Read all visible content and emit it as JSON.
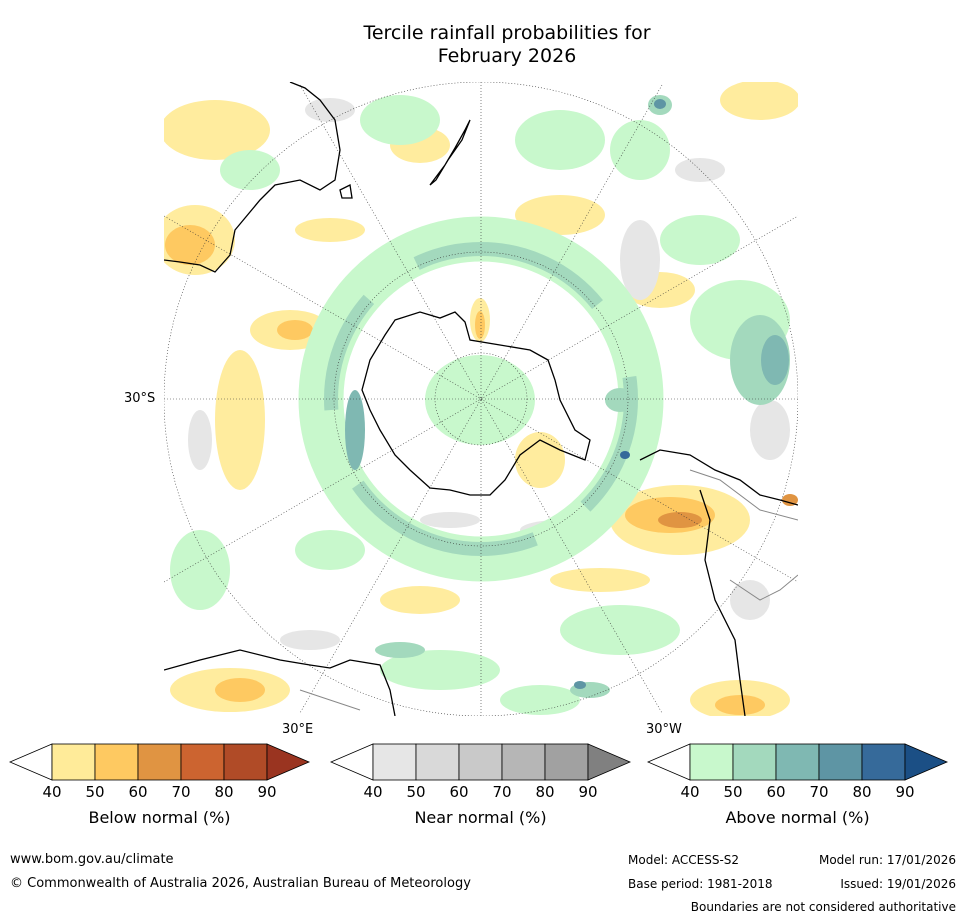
{
  "title": {
    "line1": "Tercile rainfall probabilities for",
    "line2": "February 2026"
  },
  "map": {
    "projection": "south-polar-stereographic",
    "lat_label": "30°S",
    "lon_labels": {
      "east": "30°E",
      "west": "30°W"
    },
    "colors": {
      "land_outline": "#000000",
      "boundaries": "#888888",
      "gridlines": "#333333"
    }
  },
  "colorbars": [
    {
      "id": "below",
      "title": "Below normal (%)",
      "ticks": [
        "40",
        "50",
        "60",
        "70",
        "80",
        "90"
      ],
      "colors": [
        "#ffffff",
        "#ffeb99",
        "#fec961",
        "#e09442",
        "#cc6430",
        "#b04b27",
        "#9a3420"
      ]
    },
    {
      "id": "near",
      "title": "Near normal (%)",
      "ticks": [
        "40",
        "50",
        "60",
        "70",
        "80",
        "90"
      ],
      "colors": [
        "#ffffff",
        "#e6e6e6",
        "#d9d9d9",
        "#c9c9c9",
        "#b6b6b6",
        "#a1a1a1",
        "#808080"
      ]
    },
    {
      "id": "above",
      "title": "Above normal (%)",
      "ticks": [
        "40",
        "50",
        "60",
        "70",
        "80",
        "90"
      ],
      "colors": [
        "#ffffff",
        "#c8f8cc",
        "#a3d9bd",
        "#7fb8b2",
        "#5e95a4",
        "#366a9a",
        "#1b4f85"
      ]
    }
  ],
  "footer": {
    "website": "www.bom.gov.au/climate",
    "copyright": "© Commonwealth of Australia 2026, Australian Bureau of Meteorology",
    "model": "Model: ACCESS-S2",
    "model_run": "Model run: 17/01/2026",
    "base_period": "Base period: 1981-2018",
    "issued": "Issued: 19/01/2026",
    "disclaimer": "Boundaries are not considered authoritative"
  }
}
